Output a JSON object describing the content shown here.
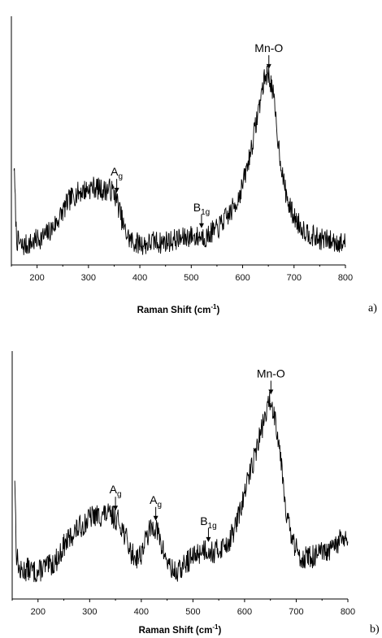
{
  "chart_data": [
    {
      "type": "line",
      "panel_label": "a)",
      "xlabel": "Raman Shift (cm",
      "xlabel_sup": "-1",
      "xlabel_suffix": ")",
      "xlim": [
        150,
        800
      ],
      "xticks": [
        200,
        300,
        400,
        500,
        600,
        700,
        800
      ],
      "ylabel": "",
      "yticks_shown": false,
      "series": [
        {
          "x": [
            155,
            160,
            170,
            180,
            190,
            200,
            210,
            220,
            230,
            240,
            250,
            260,
            270,
            280,
            290,
            300,
            310,
            320,
            330,
            340,
            350,
            355,
            360,
            370,
            380,
            390,
            400,
            410,
            420,
            430,
            440,
            450,
            460,
            470,
            480,
            490,
            500,
            510,
            520,
            530,
            540,
            550,
            560,
            570,
            580,
            590,
            600,
            610,
            620,
            630,
            640,
            645,
            650,
            655,
            660,
            670,
            680,
            690,
            700,
            710,
            720,
            730,
            740,
            750,
            760,
            770,
            780,
            790,
            800
          ],
          "y": [
            0.52,
            0.12,
            0.08,
            0.09,
            0.1,
            0.12,
            0.13,
            0.15,
            0.18,
            0.22,
            0.27,
            0.32,
            0.35,
            0.37,
            0.38,
            0.39,
            0.4,
            0.39,
            0.38,
            0.39,
            0.37,
            0.33,
            0.28,
            0.17,
            0.12,
            0.1,
            0.1,
            0.09,
            0.1,
            0.11,
            0.1,
            0.11,
            0.11,
            0.12,
            0.12,
            0.13,
            0.14,
            0.13,
            0.14,
            0.13,
            0.16,
            0.17,
            0.21,
            0.24,
            0.28,
            0.33,
            0.41,
            0.52,
            0.65,
            0.8,
            0.95,
            1.0,
            1.0,
            0.96,
            0.88,
            0.62,
            0.42,
            0.3,
            0.24,
            0.2,
            0.17,
            0.15,
            0.13,
            0.12,
            0.12,
            0.11,
            0.11,
            0.1,
            0.1
          ]
        }
      ],
      "annotations": [
        {
          "label": "A",
          "subscript": "g",
          "x": 355
        },
        {
          "label": "B",
          "subscript": "1g",
          "x": 520
        },
        {
          "label": "Mn-O",
          "subscript": "",
          "x": 651
        }
      ]
    },
    {
      "type": "line",
      "panel_label": "b)",
      "xlabel": "Raman Shift (cm",
      "xlabel_sup": "-1",
      "xlabel_suffix": ")",
      "xlim": [
        150,
        800
      ],
      "xticks": [
        200,
        300,
        400,
        500,
        600,
        700,
        800
      ],
      "ylabel": "",
      "yticks_shown": false,
      "series": [
        {
          "x": [
            155,
            158,
            165,
            170,
            180,
            190,
            200,
            210,
            220,
            230,
            240,
            250,
            260,
            270,
            280,
            290,
            300,
            310,
            320,
            330,
            340,
            350,
            360,
            370,
            380,
            390,
            400,
            410,
            420,
            425,
            430,
            440,
            450,
            460,
            470,
            480,
            490,
            500,
            510,
            520,
            530,
            540,
            550,
            560,
            570,
            580,
            590,
            600,
            610,
            620,
            630,
            640,
            645,
            650,
            655,
            660,
            670,
            680,
            690,
            700,
            710,
            720,
            730,
            740,
            750,
            760,
            770,
            780,
            790,
            800
          ],
          "y": [
            0.62,
            0.22,
            0.12,
            0.13,
            0.14,
            0.13,
            0.12,
            0.15,
            0.15,
            0.17,
            0.2,
            0.26,
            0.29,
            0.33,
            0.35,
            0.37,
            0.4,
            0.41,
            0.41,
            0.42,
            0.41,
            0.4,
            0.37,
            0.3,
            0.22,
            0.2,
            0.22,
            0.3,
            0.35,
            0.36,
            0.34,
            0.25,
            0.18,
            0.13,
            0.12,
            0.15,
            0.18,
            0.2,
            0.22,
            0.24,
            0.24,
            0.22,
            0.24,
            0.26,
            0.28,
            0.34,
            0.42,
            0.52,
            0.63,
            0.72,
            0.82,
            0.92,
            0.96,
            1.0,
            0.95,
            0.9,
            0.72,
            0.45,
            0.3,
            0.24,
            0.2,
            0.2,
            0.2,
            0.21,
            0.22,
            0.22,
            0.24,
            0.27,
            0.3,
            0.27
          ]
        }
      ],
      "annotations": [
        {
          "label": "A",
          "subscript": "g",
          "x": 350
        },
        {
          "label": "A",
          "subscript": "g",
          "x": 428
        },
        {
          "label": "B",
          "subscript": "1g",
          "x": 530
        },
        {
          "label": "Mn-O",
          "subscript": "",
          "x": 651
        }
      ]
    }
  ]
}
